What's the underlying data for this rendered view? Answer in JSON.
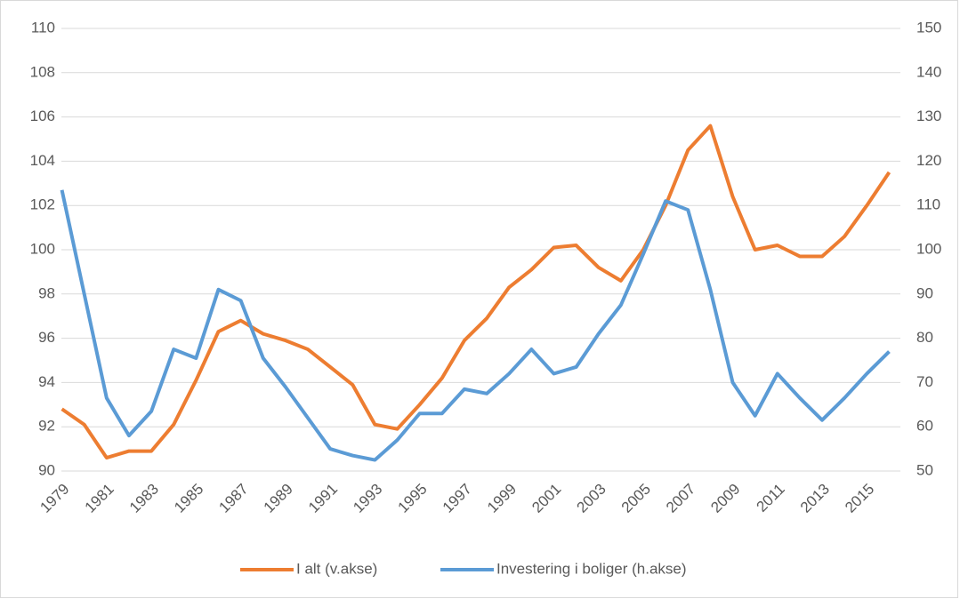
{
  "chart_data": {
    "type": "line",
    "x": [
      1979,
      1980,
      1981,
      1982,
      1983,
      1984,
      1985,
      1986,
      1987,
      1988,
      1989,
      1990,
      1991,
      1992,
      1993,
      1994,
      1995,
      1996,
      1997,
      1998,
      1999,
      2000,
      2001,
      2002,
      2003,
      2004,
      2005,
      2006,
      2007,
      2008,
      2009,
      2010,
      2011,
      2012,
      2013,
      2014,
      2015,
      2016
    ],
    "xlim": [
      1978.5,
      2016.5
    ],
    "xticks": [
      1979,
      1981,
      1983,
      1985,
      1987,
      1989,
      1991,
      1993,
      1995,
      1997,
      1999,
      2001,
      2003,
      2005,
      2007,
      2009,
      2011,
      2013,
      2015
    ],
    "ylim": [
      90,
      110
    ],
    "yticks": [
      90,
      92,
      94,
      96,
      98,
      100,
      102,
      104,
      106,
      108,
      110
    ],
    "y2lim": [
      50,
      150
    ],
    "y2ticks": [
      50,
      60,
      70,
      80,
      90,
      100,
      110,
      120,
      130,
      140,
      150
    ],
    "grid": true,
    "legend": "bottom",
    "series": [
      {
        "name": "I alt (v.akse)",
        "color": "#ed7d31",
        "axis": "y",
        "values": [
          92.8,
          92.1,
          90.6,
          90.9,
          90.9,
          92.1,
          94.1,
          96.3,
          96.8,
          96.2,
          95.9,
          95.5,
          94.7,
          93.9,
          92.1,
          91.9,
          93.0,
          94.2,
          95.9,
          96.9,
          98.3,
          99.1,
          100.1,
          100.2,
          99.2,
          98.6,
          100.0,
          102.0,
          104.5,
          105.6,
          102.4,
          100.0,
          100.2,
          99.7,
          99.7,
          100.6,
          102.0,
          103.5
        ]
      },
      {
        "name": "Investering i boliger (h.akse)",
        "color": "#5b9bd5",
        "axis": "y2",
        "values": [
          113.5,
          90,
          66.5,
          58,
          63.5,
          77.5,
          75.5,
          91,
          88.5,
          75.5,
          69,
          62,
          55,
          53.5,
          52.5,
          57,
          63,
          63,
          68.5,
          67.5,
          72,
          77.5,
          72,
          73.5,
          81,
          87.5,
          99,
          111,
          109,
          91,
          70,
          62.5,
          72,
          66.5,
          61.5,
          66.5,
          72,
          77
        ]
      }
    ]
  }
}
